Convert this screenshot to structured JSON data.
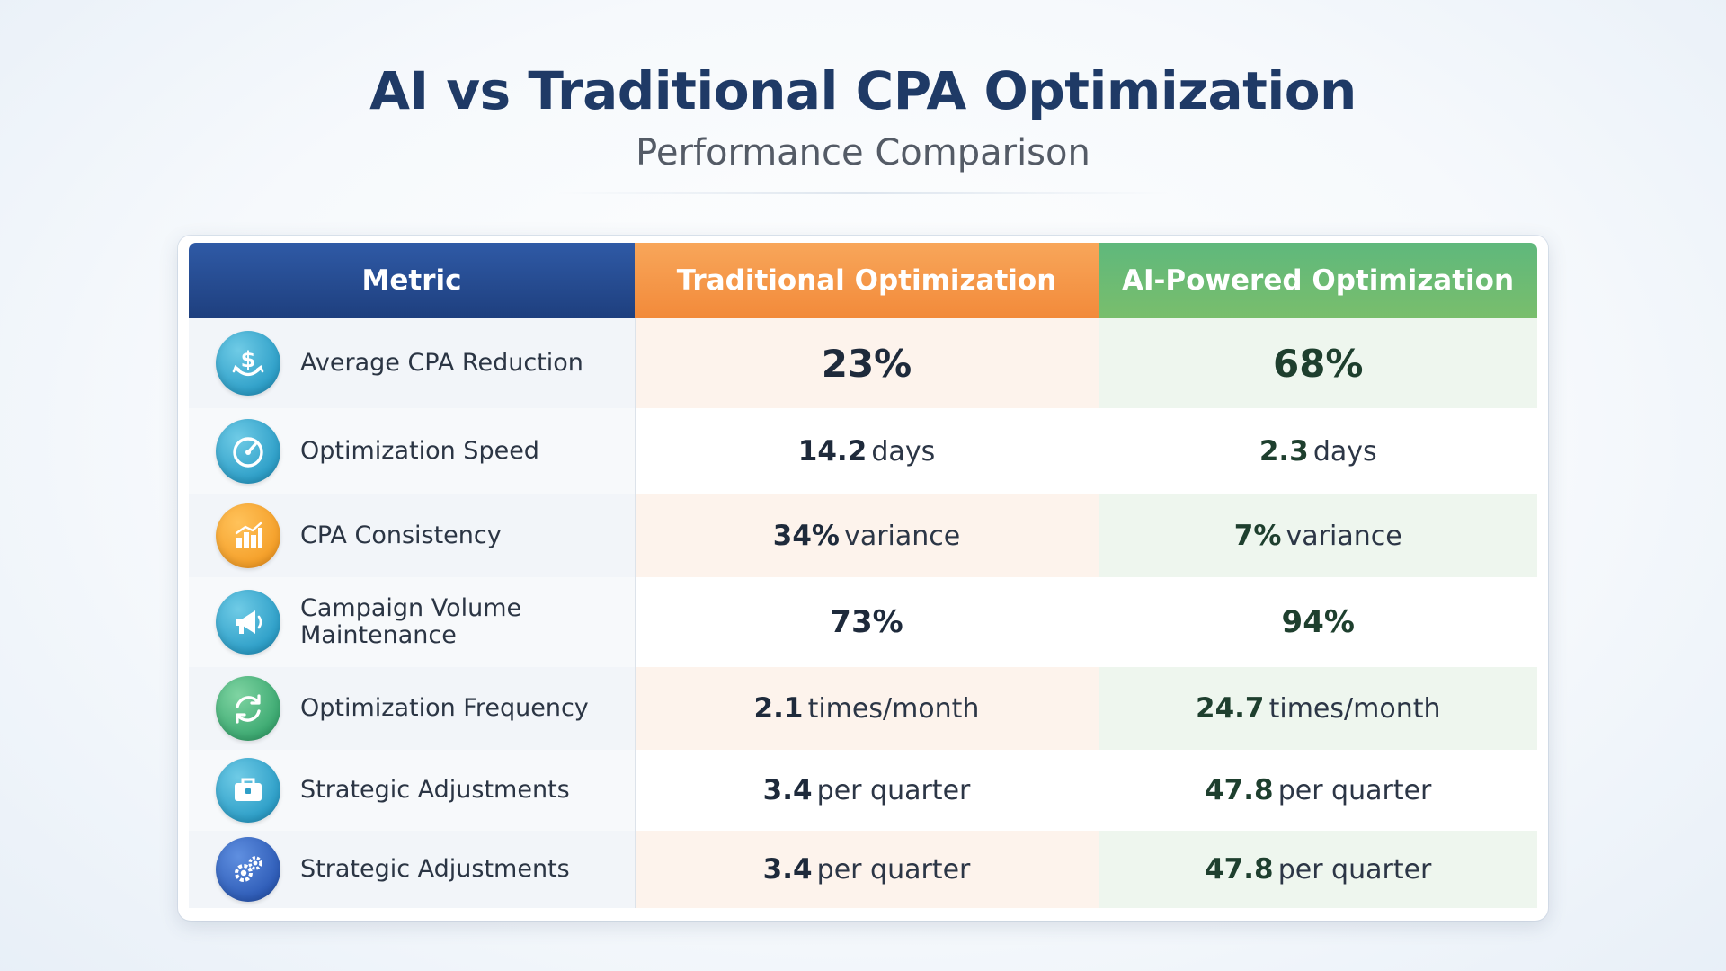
{
  "header": {
    "title": "AI vs Traditional CPA Optimization",
    "subtitle": "Performance Comparison"
  },
  "table": {
    "columns": [
      "Metric",
      "Traditional Optimization",
      "AI-Powered Optimization"
    ],
    "rows": [
      {
        "icon": "dollar-anchor-icon",
        "metric": "Average CPA Reduction",
        "trad_num": "23%",
        "trad_unit": "",
        "ai_num": "68%",
        "ai_unit": ""
      },
      {
        "icon": "speedometer-icon",
        "metric": "Optimization Speed",
        "trad_num": "14.2",
        "trad_unit": "days",
        "ai_num": "2.3",
        "ai_unit": "days"
      },
      {
        "icon": "bar-chart-icon",
        "metric": "CPA Consistency",
        "trad_num": "34%",
        "trad_unit": "variance",
        "ai_num": "7%",
        "ai_unit": "variance"
      },
      {
        "icon": "megaphone-icon",
        "metric": "Campaign Volume Maintenance",
        "trad_num": "73%",
        "trad_unit": "",
        "ai_num": "94%",
        "ai_unit": ""
      },
      {
        "icon": "refresh-icon",
        "metric": "Optimization Frequency",
        "trad_num": "2.1",
        "trad_unit": "times/month",
        "ai_num": "24.7",
        "ai_unit": "times/month"
      },
      {
        "icon": "briefcase-icon",
        "metric": "Strategic Adjustments",
        "trad_num": "3.4",
        "trad_unit": "per quarter",
        "ai_num": "47.8",
        "ai_unit": "per quarter"
      },
      {
        "icon": "gears-icon",
        "metric": "Strategic Adjustments",
        "trad_num": "3.4",
        "trad_unit": "per quarter",
        "ai_num": "47.8",
        "ai_unit": "per quarter"
      }
    ]
  },
  "colors": {
    "metric_header": "#1e3f7e",
    "traditional_header": "#f28a3a",
    "ai_header": "#5fb87c",
    "title": "#1f3a66"
  }
}
